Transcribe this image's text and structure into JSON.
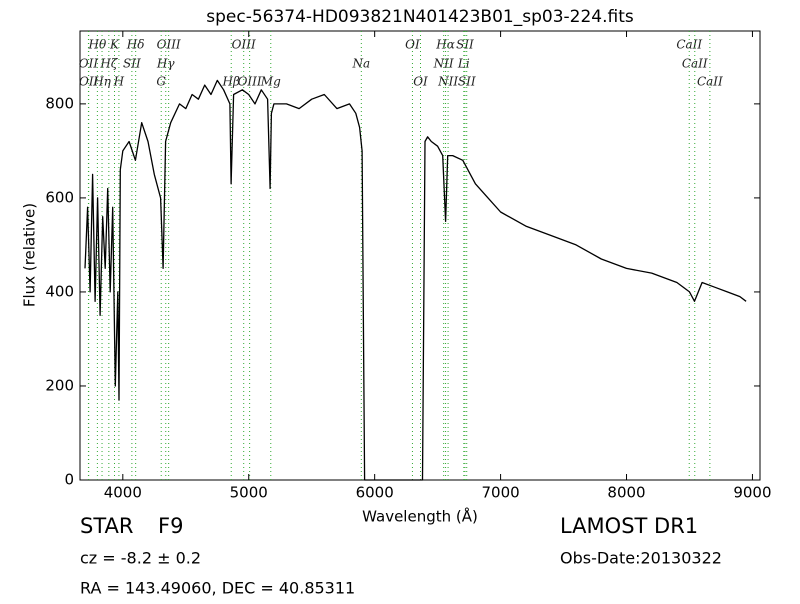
{
  "chart_data": {
    "type": "line",
    "title": "spec-56374-HD093821N401423B01_sp03-224.fits",
    "x_label": "Wavelength (Å)",
    "y_label": "Flux (relative)",
    "xlim": [
      3660,
      9060
    ],
    "ylim": [
      0,
      955
    ],
    "xticks": [
      4000,
      5000,
      6000,
      7000,
      8000,
      9000
    ],
    "yticks": [
      0,
      200,
      400,
      600,
      800
    ],
    "x": [
      3700,
      3720,
      3740,
      3760,
      3780,
      3800,
      3820,
      3840,
      3860,
      3880,
      3900,
      3920,
      3940,
      3960,
      3970,
      3980,
      4000,
      4050,
      4100,
      4150,
      4200,
      4250,
      4300,
      4320,
      4340,
      4380,
      4450,
      4500,
      4550,
      4600,
      4650,
      4700,
      4750,
      4800,
      4850,
      4860,
      4880,
      4950,
      5000,
      5050,
      5100,
      5150,
      5170,
      5180,
      5200,
      5300,
      5400,
      5500,
      5600,
      5700,
      5800,
      5850,
      5880,
      5900,
      5920,
      5930,
      5950,
      6000,
      6100,
      6200,
      6300,
      6350,
      6380,
      6400,
      6420,
      6450,
      6500,
      6540,
      6563,
      6580,
      6620,
      6700,
      6800,
      6900,
      7000,
      7200,
      7400,
      7600,
      7800,
      8000,
      8200,
      8400,
      8500,
      8540,
      8600,
      8700,
      8800,
      8900,
      8950
    ],
    "series": [
      {
        "name": "Flux",
        "color": "#000000",
        "values": [
          450,
          580,
          400,
          650,
          380,
          600,
          350,
          560,
          450,
          620,
          400,
          580,
          200,
          400,
          170,
          660,
          700,
          720,
          680,
          760,
          720,
          650,
          600,
          450,
          720,
          760,
          800,
          790,
          820,
          810,
          840,
          820,
          850,
          830,
          800,
          630,
          820,
          830,
          820,
          800,
          830,
          810,
          620,
          780,
          800,
          800,
          790,
          810,
          820,
          790,
          800,
          780,
          750,
          700,
          0,
          0,
          0,
          0,
          0,
          0,
          0,
          0,
          0,
          720,
          730,
          720,
          710,
          690,
          550,
          690,
          690,
          680,
          630,
          600,
          570,
          540,
          520,
          500,
          470,
          450,
          440,
          420,
          400,
          380,
          420,
          410,
          400,
          390,
          380
        ]
      }
    ],
    "line_color": "#33aa33",
    "lines": [
      {
        "name": "Hθ",
        "wavelength": 3798
      },
      {
        "name": "K",
        "wavelength": 3934
      },
      {
        "name": "Hδ",
        "wavelength": 4102
      },
      {
        "name": "OIII",
        "wavelength": 4364
      },
      {
        "name": "OIII",
        "wavelength": 4960
      },
      {
        "name": "OI",
        "wavelength": 6300
      },
      {
        "name": "Hα",
        "wavelength": 6563
      },
      {
        "name": "SII",
        "wavelength": 6717
      },
      {
        "name": "CaII",
        "wavelength": 8498
      },
      {
        "name": "OII",
        "wavelength": 3727
      },
      {
        "name": "Hζ",
        "wavelength": 3889
      },
      {
        "name": "SII",
        "wavelength": 4072
      },
      {
        "name": "Hγ",
        "wavelength": 4341
      },
      {
        "name": "Na",
        "wavelength": 5894
      },
      {
        "name": "NII",
        "wavelength": 6548
      },
      {
        "name": "Li",
        "wavelength": 6708
      },
      {
        "name": "CaII",
        "wavelength": 8542
      },
      {
        "name": "OII",
        "wavelength": 3729
      },
      {
        "name": "Hη",
        "wavelength": 3835
      },
      {
        "name": "H",
        "wavelength": 3969
      },
      {
        "name": "G",
        "wavelength": 4305
      },
      {
        "name": "Hβ",
        "wavelength": 4861
      },
      {
        "name": "OIII",
        "wavelength": 5007
      },
      {
        "name": "Mg",
        "wavelength": 5175
      },
      {
        "name": "OI",
        "wavelength": 6364
      },
      {
        "name": "NII",
        "wavelength": 6583
      },
      {
        "name": "SII",
        "wavelength": 6731
      },
      {
        "name": "CaII",
        "wavelength": 8662
      }
    ],
    "object_class": "STAR",
    "subclass": "F9",
    "redshift_text": "cz = -8.2 ± 0.2",
    "coordinates": "RA = 143.49060, DEC = 40.85311",
    "survey": "LAMOST DR1",
    "obs_date": "Obs-Date:20130322"
  }
}
